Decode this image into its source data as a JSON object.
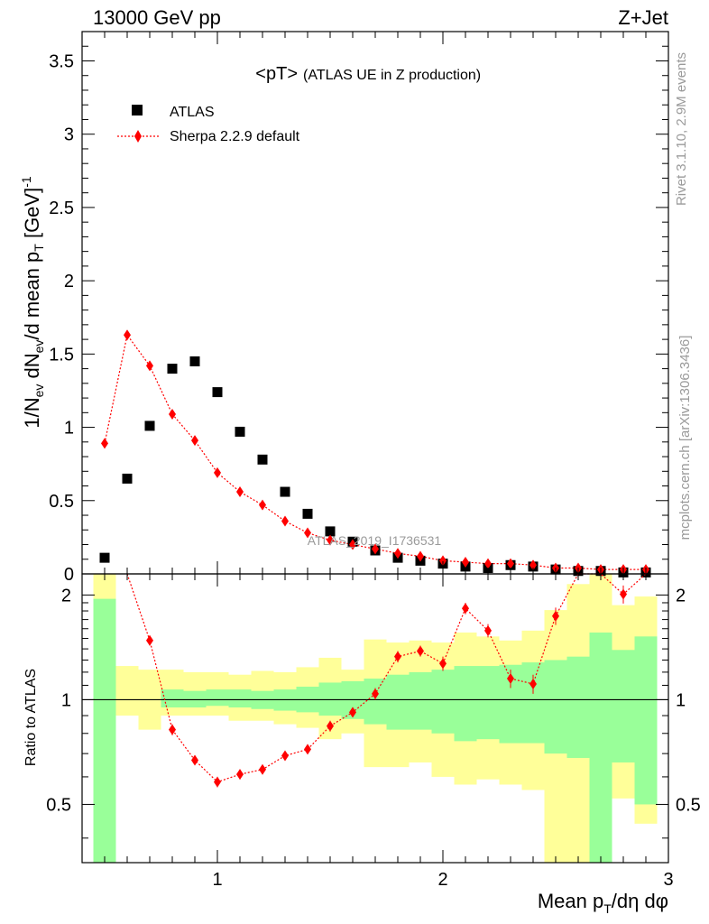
{
  "header": {
    "left": "13000 GeV pp",
    "right": "Z+Jet"
  },
  "side_labels": {
    "rivet": "Rivet 3.1.10,  2.9M events",
    "mcplots": "mcplots.cern.ch [arXiv:1306.3436]"
  },
  "chart_data": {
    "type": "scatter",
    "title_main": "<pT>",
    "title_sub": "(ATLAS UE in Z production)",
    "watermark": "ATLAS_2019_I1736531",
    "xlabel": "Mean p_T/dη dφ",
    "ylabel_main": "1/N_ev dN_ev/d mean p_T [GeV]^-1",
    "ylabel_ratio": "Ratio to ATLAS",
    "xlim": [
      0.4,
      3.0
    ],
    "ylim_main": [
      0,
      3.7
    ],
    "ylim_ratio": [
      0.34,
      2.3
    ],
    "x_ticks": [
      "1",
      "2",
      "3"
    ],
    "y_ticks_main": [
      "0",
      "0.5",
      "1",
      "1.5",
      "2",
      "2.5",
      "3",
      "3.5"
    ],
    "y_ticks_ratio": [
      "0.5",
      "1",
      "2"
    ],
    "legend_position": "top-left",
    "colors": {
      "data": "#000000",
      "mc": "#ff0000",
      "band_inner": "#99ff99",
      "band_outer": "#ffff99"
    },
    "series": [
      {
        "name": "ATLAS",
        "x": [
          0.5,
          0.6,
          0.7,
          0.8,
          0.9,
          1.0,
          1.1,
          1.2,
          1.3,
          1.4,
          1.5,
          1.6,
          1.7,
          1.8,
          1.9,
          2.0,
          2.1,
          2.2,
          2.3,
          2.4,
          2.5,
          2.6,
          2.7,
          2.8,
          2.9
        ],
        "y": [
          0.11,
          0.65,
          1.01,
          1.4,
          1.45,
          1.24,
          0.97,
          0.78,
          0.56,
          0.41,
          0.29,
          0.22,
          0.16,
          0.11,
          0.09,
          0.07,
          0.05,
          0.04,
          0.06,
          0.05,
          0.03,
          0.02,
          0.02,
          0.01,
          0.01
        ]
      },
      {
        "name": "Sherpa 2.2.9 default",
        "x": [
          0.5,
          0.6,
          0.7,
          0.8,
          0.9,
          1.0,
          1.1,
          1.2,
          1.3,
          1.4,
          1.5,
          1.6,
          1.7,
          1.8,
          1.9,
          2.0,
          2.1,
          2.2,
          2.3,
          2.4,
          2.5,
          2.6,
          2.7,
          2.8,
          2.9
        ],
        "y": [
          0.89,
          1.63,
          1.42,
          1.09,
          0.91,
          0.69,
          0.56,
          0.47,
          0.36,
          0.28,
          0.23,
          0.2,
          0.17,
          0.14,
          0.12,
          0.09,
          0.08,
          0.07,
          0.07,
          0.06,
          0.04,
          0.04,
          0.03,
          0.03,
          0.03
        ]
      }
    ],
    "ratio": {
      "x": [
        0.6,
        0.7,
        0.8,
        0.9,
        1.0,
        1.1,
        1.2,
        1.3,
        1.4,
        1.5,
        1.6,
        1.7,
        1.8,
        1.9,
        2.0,
        2.1,
        2.2,
        2.3,
        2.4,
        2.5,
        2.6,
        2.7,
        2.8,
        2.9
      ],
      "y": [
        2.4,
        1.48,
        0.82,
        0.67,
        0.58,
        0.61,
        0.63,
        0.69,
        0.72,
        0.84,
        0.92,
        1.04,
        1.33,
        1.38,
        1.27,
        1.83,
        1.58,
        1.15,
        1.11,
        1.74,
        2.4,
        2.4,
        2.01,
        2.4
      ],
      "bins": [
        0.45,
        0.55,
        0.65,
        0.75,
        0.85,
        0.95,
        1.05,
        1.15,
        1.25,
        1.35,
        1.45,
        1.55,
        1.65,
        1.75,
        1.85,
        1.95,
        2.05,
        2.15,
        2.25,
        2.35,
        2.45,
        2.55,
        2.65,
        2.75,
        2.85,
        2.95
      ],
      "band_inner": [
        [
          0.0,
          1.95
        ],
        [
          1.05,
          1.05
        ],
        [
          1.08,
          0.95
        ],
        [
          0.95,
          1.07
        ],
        [
          0.95,
          1.06
        ],
        [
          0.96,
          1.07
        ],
        [
          0.95,
          1.07
        ],
        [
          0.94,
          1.06
        ],
        [
          0.93,
          1.07
        ],
        [
          0.92,
          1.09
        ],
        [
          0.9,
          1.12
        ],
        [
          0.88,
          1.13
        ],
        [
          0.85,
          1.15
        ],
        [
          0.82,
          1.18
        ],
        [
          0.82,
          1.2
        ],
        [
          0.8,
          1.22
        ],
        [
          0.76,
          1.25
        ],
        [
          0.77,
          1.25
        ],
        [
          0.75,
          1.26
        ],
        [
          0.75,
          1.28
        ],
        [
          0.7,
          1.3
        ],
        [
          0.68,
          1.33
        ],
        [
          0.0,
          1.56
        ],
        [
          0.66,
          1.39
        ],
        [
          0.5,
          1.52
        ]
      ],
      "band_outer": [
        [
          0.0,
          2.5
        ],
        [
          0.9,
          1.25
        ],
        [
          0.82,
          1.22
        ],
        [
          0.9,
          1.22
        ],
        [
          0.9,
          1.2
        ],
        [
          0.9,
          1.2
        ],
        [
          0.87,
          1.18
        ],
        [
          0.87,
          1.21
        ],
        [
          0.85,
          1.2
        ],
        [
          0.83,
          1.24
        ],
        [
          0.77,
          1.32
        ],
        [
          0.8,
          1.22
        ],
        [
          0.64,
          1.49
        ],
        [
          0.64,
          1.46
        ],
        [
          0.66,
          1.48
        ],
        [
          0.6,
          1.46
        ],
        [
          0.57,
          1.56
        ],
        [
          0.59,
          1.52
        ],
        [
          0.57,
          1.48
        ],
        [
          0.55,
          1.58
        ],
        [
          0.3,
          1.81
        ],
        [
          0.3,
          2.15
        ],
        [
          0.0,
          2.5
        ],
        [
          0.52,
          1.87
        ],
        [
          0.44,
          1.98
        ]
      ],
      "yerr_mc": [
        0.12,
        0.05,
        0.03,
        0.02,
        0.02,
        0.02,
        0.02,
        0.02,
        0.02,
        0.03,
        0.03,
        0.04,
        0.05,
        0.05,
        0.06,
        0.07,
        0.07,
        0.07,
        0.07,
        0.1,
        0.1,
        0.1,
        0.12,
        0.1
      ]
    }
  }
}
